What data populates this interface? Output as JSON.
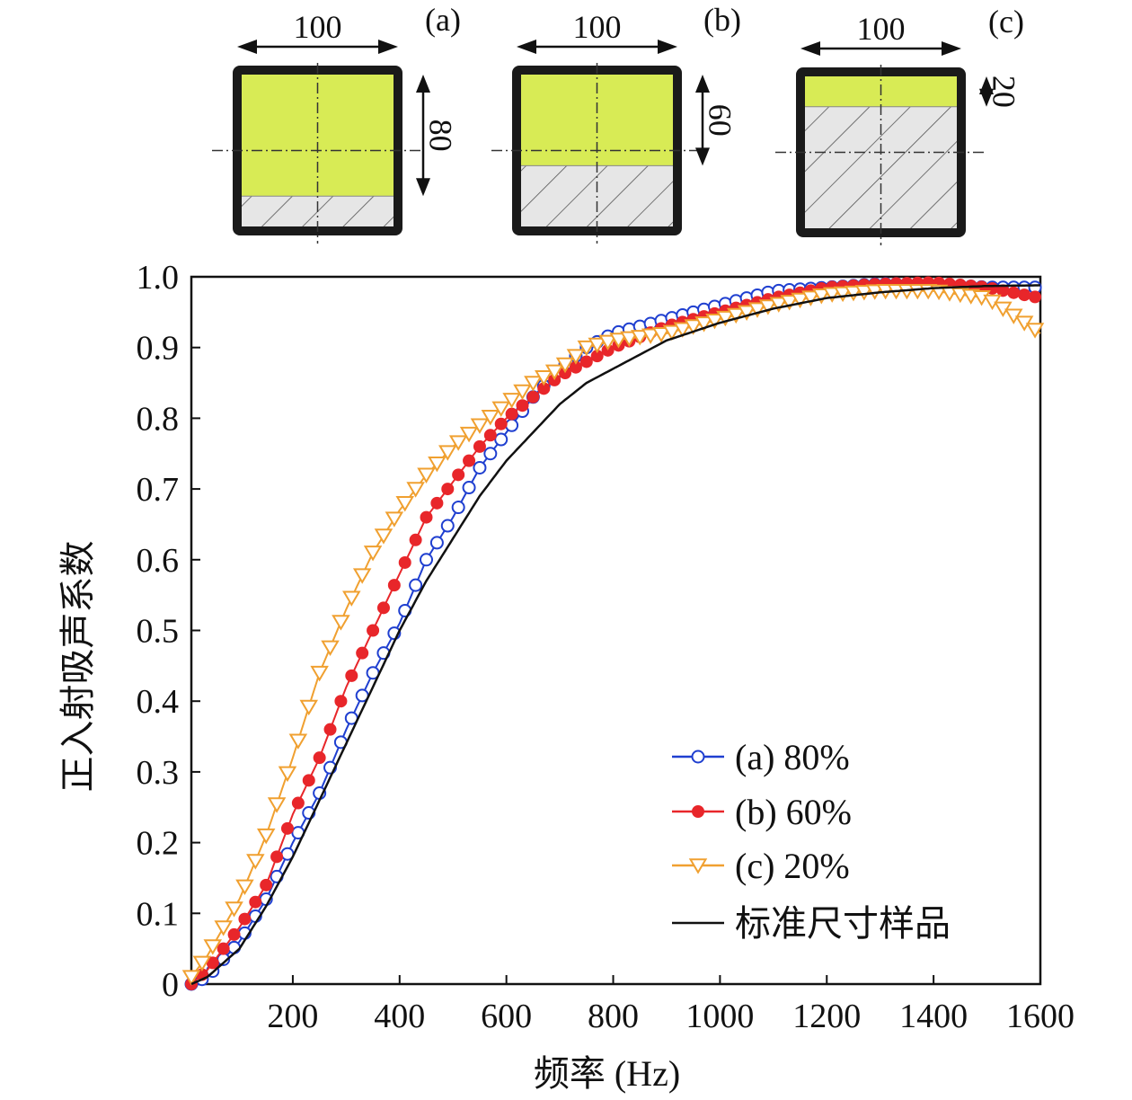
{
  "panels": [
    {
      "label": "(a)",
      "width_label": "100",
      "height_label": "80",
      "fill_fraction": 0.8
    },
    {
      "label": "(b)",
      "width_label": "100",
      "height_label": "60",
      "fill_fraction": 0.6
    },
    {
      "label": "(c)",
      "width_label": "100",
      "height_label": "20",
      "fill_fraction": 0.2
    }
  ],
  "colors": {
    "fill": "#d8eb55",
    "hatch_bg": "#e6e6e6",
    "frame": "#1a1a1a"
  },
  "chart_data": {
    "type": "line",
    "title": "",
    "xlabel": "频率 (Hz)",
    "ylabel": "正入射吸声系数",
    "xlim": [
      10,
      1600
    ],
    "ylim": [
      0,
      1.0
    ],
    "xticks": [
      200,
      400,
      600,
      800,
      1000,
      1200,
      1400,
      1600
    ],
    "xtick_labels": [
      "200",
      "400",
      "600",
      "800",
      "1000",
      "1200",
      "1400",
      "1600"
    ],
    "yticks": [
      0,
      0.1,
      0.2,
      0.3,
      0.4,
      0.5,
      0.6,
      0.7,
      0.8,
      0.9,
      1.0
    ],
    "ytick_labels": [
      "0",
      "0.1",
      "0.2",
      "0.3",
      "0.4",
      "0.5",
      "0.6",
      "0.7",
      "0.8",
      "0.9",
      "1.0"
    ],
    "legend_position": "bottom-right",
    "grid": false,
    "series": [
      {
        "name": "(a) 80%",
        "color": "#1f3fd0",
        "marker": "open-circle",
        "points": [
          [
            10,
            0
          ],
          [
            40,
            0.01
          ],
          [
            100,
            0.06
          ],
          [
            150,
            0.12
          ],
          [
            200,
            0.2
          ],
          [
            250,
            0.27
          ],
          [
            300,
            0.36
          ],
          [
            350,
            0.44
          ],
          [
            400,
            0.51
          ],
          [
            450,
            0.6
          ],
          [
            500,
            0.66
          ],
          [
            550,
            0.73
          ],
          [
            600,
            0.78
          ],
          [
            650,
            0.83
          ],
          [
            700,
            0.87
          ],
          [
            750,
            0.9
          ],
          [
            800,
            0.92
          ],
          [
            900,
            0.94
          ],
          [
            1000,
            0.96
          ],
          [
            1100,
            0.98
          ],
          [
            1200,
            0.985
          ],
          [
            1300,
            0.99
          ],
          [
            1400,
            0.99
          ],
          [
            1500,
            0.985
          ],
          [
            1600,
            0.985
          ]
        ]
      },
      {
        "name": "(b) 60%",
        "color": "#e8262a",
        "marker": "filled-circle",
        "points": [
          [
            10,
            0
          ],
          [
            40,
            0.02
          ],
          [
            100,
            0.08
          ],
          [
            150,
            0.14
          ],
          [
            200,
            0.24
          ],
          [
            250,
            0.32
          ],
          [
            300,
            0.42
          ],
          [
            350,
            0.5
          ],
          [
            400,
            0.58
          ],
          [
            450,
            0.66
          ],
          [
            500,
            0.71
          ],
          [
            550,
            0.76
          ],
          [
            600,
            0.8
          ],
          [
            650,
            0.83
          ],
          [
            700,
            0.86
          ],
          [
            750,
            0.88
          ],
          [
            800,
            0.9
          ],
          [
            900,
            0.93
          ],
          [
            1000,
            0.95
          ],
          [
            1100,
            0.97
          ],
          [
            1200,
            0.985
          ],
          [
            1300,
            0.99
          ],
          [
            1400,
            0.992
          ],
          [
            1500,
            0.985
          ],
          [
            1600,
            0.97
          ]
        ]
      },
      {
        "name": "(c) 20%",
        "color": "#f0a030",
        "marker": "open-triangle-down",
        "points": [
          [
            10,
            0.01
          ],
          [
            40,
            0.04
          ],
          [
            100,
            0.12
          ],
          [
            150,
            0.21
          ],
          [
            200,
            0.32
          ],
          [
            250,
            0.44
          ],
          [
            300,
            0.53
          ],
          [
            350,
            0.61
          ],
          [
            400,
            0.67
          ],
          [
            450,
            0.72
          ],
          [
            500,
            0.76
          ],
          [
            550,
            0.79
          ],
          [
            600,
            0.82
          ],
          [
            650,
            0.85
          ],
          [
            700,
            0.87
          ],
          [
            750,
            0.9
          ],
          [
            800,
            0.91
          ],
          [
            900,
            0.92
          ],
          [
            1000,
            0.94
          ],
          [
            1100,
            0.96
          ],
          [
            1200,
            0.975
          ],
          [
            1300,
            0.98
          ],
          [
            1400,
            0.98
          ],
          [
            1500,
            0.97
          ],
          [
            1600,
            0.92
          ]
        ]
      },
      {
        "name": "标准尺寸样品",
        "color": "#111111",
        "marker": "none",
        "points": [
          [
            10,
            0
          ],
          [
            40,
            0.01
          ],
          [
            100,
            0.05
          ],
          [
            150,
            0.11
          ],
          [
            200,
            0.18
          ],
          [
            250,
            0.26
          ],
          [
            300,
            0.34
          ],
          [
            350,
            0.42
          ],
          [
            400,
            0.5
          ],
          [
            450,
            0.57
          ],
          [
            500,
            0.63
          ],
          [
            550,
            0.69
          ],
          [
            600,
            0.74
          ],
          [
            650,
            0.78
          ],
          [
            700,
            0.82
          ],
          [
            750,
            0.85
          ],
          [
            800,
            0.87
          ],
          [
            900,
            0.91
          ],
          [
            1000,
            0.935
          ],
          [
            1100,
            0.955
          ],
          [
            1200,
            0.97
          ],
          [
            1300,
            0.978
          ],
          [
            1400,
            0.984
          ],
          [
            1500,
            0.987
          ],
          [
            1600,
            0.988
          ]
        ]
      }
    ]
  }
}
